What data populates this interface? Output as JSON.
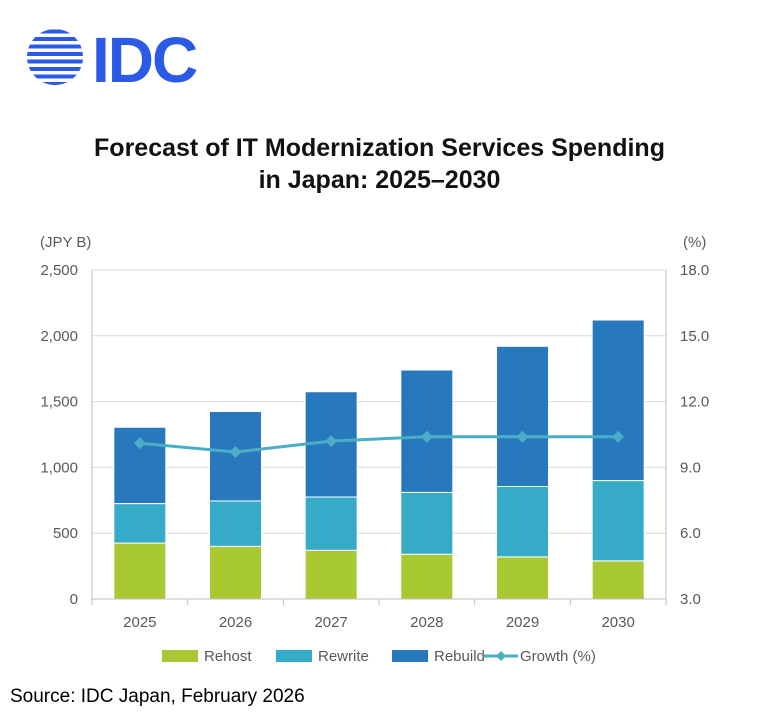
{
  "logo": {
    "text": "IDC",
    "color": "#2B5BE6"
  },
  "title": {
    "line1": "Forecast of IT Modernization Services Spending",
    "line2": "in Japan: 2025–2030"
  },
  "source": "Source: IDC Japan, February 2026",
  "chart_data": {
    "type": "bar",
    "stacked": true,
    "categories": [
      "2025",
      "2026",
      "2027",
      "2028",
      "2029",
      "2030"
    ],
    "series": [
      {
        "name": "Rehost",
        "color": "#A8C931",
        "values": [
          425,
          400,
          370,
          340,
          320,
          290
        ]
      },
      {
        "name": "Rewrite",
        "color": "#35ABC8",
        "values": [
          300,
          345,
          405,
          470,
          535,
          610
        ]
      },
      {
        "name": "Rebuild",
        "color": "#2878BD",
        "values": [
          580,
          680,
          800,
          930,
          1065,
          1220
        ]
      }
    ],
    "line_series": {
      "name": "Growth (%)",
      "color": "#4BADC6",
      "axis": "right",
      "values": [
        10.1,
        9.7,
        10.2,
        10.4,
        10.4,
        10.4
      ]
    },
    "ylabel": "(JPY B)",
    "ylabel_right": "(%)",
    "ylim": [
      0,
      2500
    ],
    "ylim_right": [
      3.0,
      18.0
    ],
    "yticks": [
      "0",
      "500",
      "1,000",
      "1,500",
      "2,000",
      "2,500"
    ],
    "yticks_right": [
      "3.0",
      "6.0",
      "9.0",
      "12.0",
      "15.0",
      "18.0"
    ],
    "legend": [
      "Rehost",
      "Rewrite",
      "Rebuild",
      "Growth (%)"
    ],
    "legend_position": "bottom",
    "grid": true,
    "grid_color": "#D9D9D9"
  }
}
